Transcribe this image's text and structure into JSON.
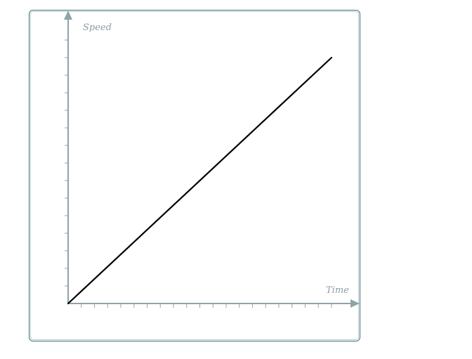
{
  "chart_data": {
    "type": "line",
    "title": "",
    "xlabel": "Time",
    "ylabel": "Speed",
    "x": [
      0,
      20
    ],
    "series": [
      {
        "values": [
          0,
          14
        ]
      }
    ],
    "xlim": [
      0,
      22
    ],
    "ylim": [
      0,
      15
    ],
    "x_ticks": [
      1,
      2,
      3,
      4,
      5,
      6,
      7,
      8,
      9,
      10,
      11,
      12,
      13,
      14,
      15,
      16,
      17,
      18,
      19,
      20
    ],
    "y_ticks": [
      1,
      2,
      3,
      4,
      5,
      6,
      7,
      8,
      9,
      10,
      11,
      12,
      13,
      14,
      15
    ],
    "tick_labels_shown": false,
    "grid": false,
    "colors": {
      "axis": "#8fa3a8",
      "line": "#000000",
      "frame": "#3f6b78"
    }
  }
}
